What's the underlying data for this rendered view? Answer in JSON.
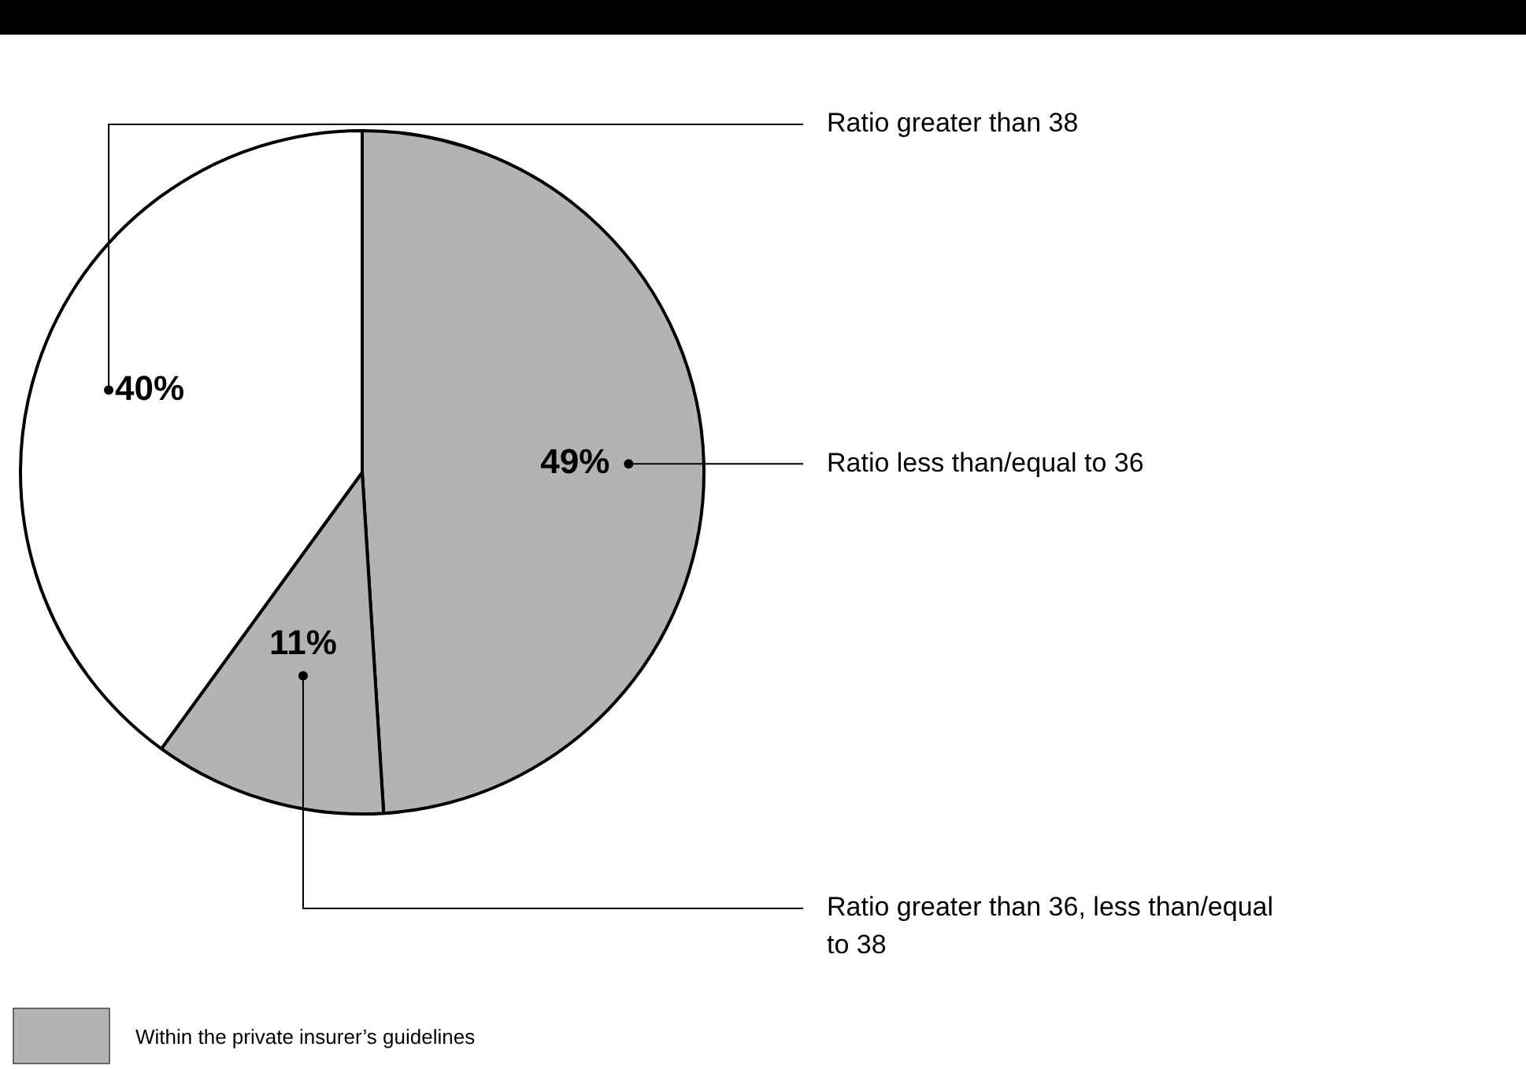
{
  "chart_data": {
    "type": "pie",
    "categories": [
      "Ratio less than/equal to 36",
      "Ratio greater than 36, less than/equal to 38",
      "Ratio greater than 38"
    ],
    "values": [
      49,
      11,
      40
    ],
    "colors": [
      "#b3b3b3",
      "#b3b3b3",
      "#ffffff"
    ],
    "value_labels": [
      "49%",
      "11%",
      "40%"
    ],
    "legend": false,
    "annotations": [
      "Within the private insurer’s guidelines"
    ]
  }
}
